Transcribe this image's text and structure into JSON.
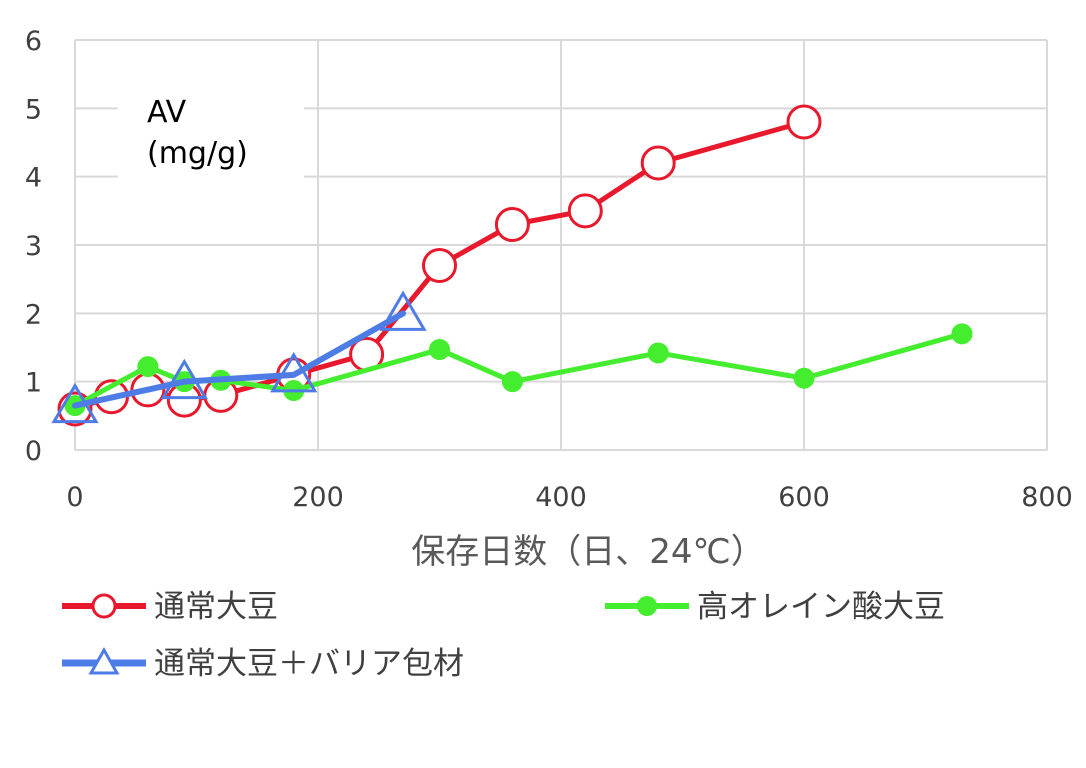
{
  "chart_data": {
    "type": "line",
    "xlabel": "保存日数（日、24℃）",
    "ylabel_lines": [
      "AV",
      "(mg/g)"
    ],
    "xlim": [
      0,
      800
    ],
    "ylim": [
      0,
      6
    ],
    "x_ticks": [
      0,
      200,
      400,
      600,
      800
    ],
    "y_ticks": [
      0,
      1,
      2,
      3,
      4,
      5,
      6
    ],
    "grid": true,
    "legend_position": "bottom",
    "series": [
      {
        "name": "通常大豆",
        "color": "#e8192c",
        "marker": "circle-open",
        "x": [
          0,
          30,
          60,
          90,
          120,
          180,
          240,
          300,
          360,
          420,
          480,
          600
        ],
        "y": [
          0.6,
          0.78,
          0.88,
          0.73,
          0.8,
          1.1,
          1.4,
          2.7,
          3.3,
          3.5,
          4.2,
          4.8
        ]
      },
      {
        "name": "高オレイン酸大豆",
        "color": "#44ee2e",
        "marker": "circle-filled",
        "x": [
          0,
          60,
          90,
          120,
          180,
          300,
          360,
          480,
          600,
          730
        ],
        "y": [
          0.65,
          1.22,
          1.0,
          1.02,
          0.87,
          1.47,
          1.0,
          1.42,
          1.05,
          1.7
        ]
      },
      {
        "name": "通常大豆＋バリア包材",
        "color": "#4e7ce6",
        "marker": "triangle-open",
        "x": [
          0,
          90,
          180,
          270
        ],
        "y": [
          0.65,
          1.0,
          1.1,
          2.0
        ]
      }
    ]
  }
}
